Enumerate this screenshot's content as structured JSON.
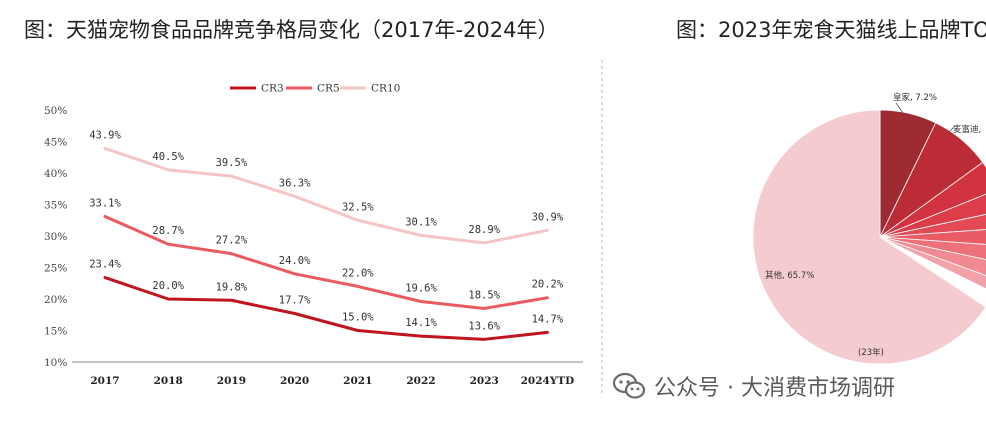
{
  "titles": {
    "left": "图：天猫宠物食品品牌竞争格局变化（2017年-2024年）",
    "right": "图：2023年宠食天猫线上品牌TO"
  },
  "watermark": {
    "text": "公众号 · 大消费市场调研",
    "icon": "wechat-icon"
  },
  "chart_data": [
    {
      "type": "line",
      "categories": [
        "2017",
        "2018",
        "2019",
        "2020",
        "2021",
        "2022",
        "2023",
        "2024YTD"
      ],
      "series": [
        {
          "name": "CR3",
          "color": "#c0141e",
          "values": [
            23.4,
            20.0,
            19.8,
            17.7,
            15.0,
            14.1,
            13.6,
            14.7
          ],
          "labels": [
            "23.4%",
            "20.0%",
            "19.8%",
            "17.7%",
            "15.0%",
            "14.1%",
            "13.6%",
            "14.7%"
          ]
        },
        {
          "name": "CR5",
          "color": "#ea5a5f",
          "values": [
            33.1,
            28.7,
            27.2,
            24.0,
            22.0,
            19.6,
            18.5,
            20.2
          ],
          "labels": [
            "33.1%",
            "28.7%",
            "27.2%",
            "24.0%",
            "22.0%",
            "19.6%",
            "18.5%",
            "20.2%"
          ]
        },
        {
          "name": "CR10",
          "color": "#f7c4c5",
          "values": [
            43.9,
            40.5,
            39.5,
            36.3,
            32.5,
            30.1,
            28.9,
            30.9
          ],
          "labels": [
            "43.9%",
            "40.5%",
            "39.5%",
            "36.3%",
            "32.5%",
            "30.1%",
            "28.9%",
            "30.9%"
          ]
        }
      ],
      "ylim": [
        10,
        50
      ],
      "yticks": [
        "10%",
        "15%",
        "20%",
        "25%",
        "30%",
        "35%",
        "40%",
        "45%",
        "50%"
      ],
      "legend": "top-center"
    },
    {
      "type": "pie",
      "visible_labels": [
        "皇家, 7.2%",
        "麦富迪,",
        "其他, 65.7%",
        "(23年)"
      ],
      "slices": [
        {
          "name": "皇家",
          "value": 7.2,
          "color": "#9e2a32"
        },
        {
          "name": "麦富迪",
          "color": "#bb2c37"
        },
        {
          "color": "#d13440"
        },
        {
          "color": "#dc3d49"
        },
        {
          "color": "#e34a55"
        },
        {
          "color": "#e95b65"
        },
        {
          "color": "#ed707a"
        },
        {
          "color": "#f08992"
        },
        {
          "color": "#f3a1a8"
        },
        {
          "name": "其他",
          "value": 65.7,
          "color": "#f4cccf"
        }
      ]
    }
  ]
}
